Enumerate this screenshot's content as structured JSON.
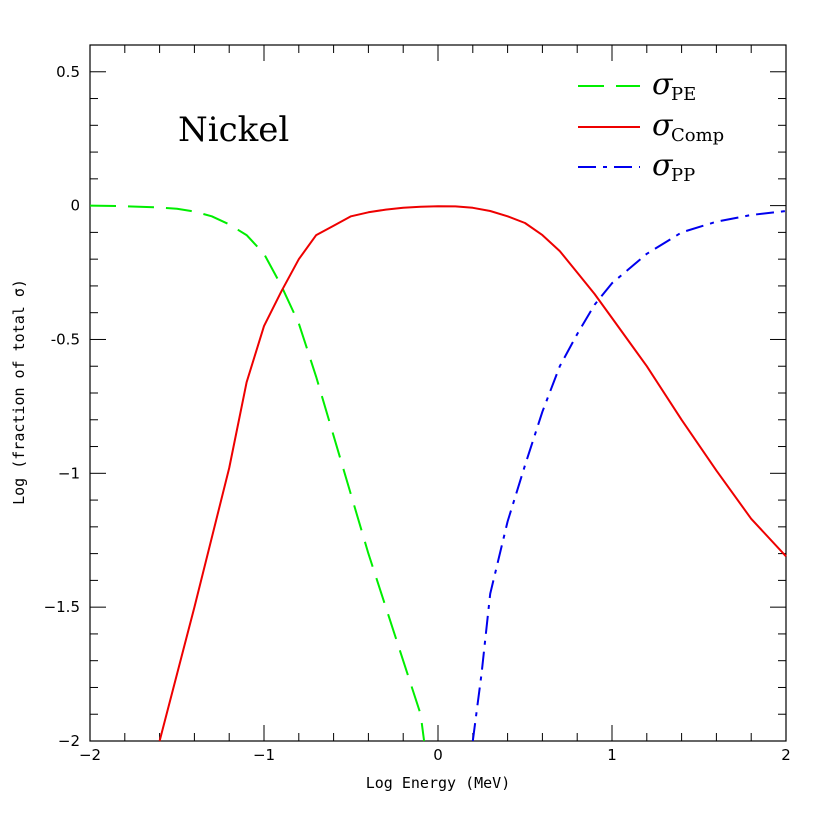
{
  "chart_data": {
    "type": "line",
    "title": "",
    "xlabel": "Log Energy (MeV)",
    "ylabel": "Log (fraction of total σ)",
    "xlim": [
      -2,
      2
    ],
    "ylim": [
      -2,
      0.6
    ],
    "xticks": [
      {
        "value": -2,
        "label": "−2"
      },
      {
        "value": -1,
        "label": "−1"
      },
      {
        "value": 0,
        "label": "0"
      },
      {
        "value": 1,
        "label": "1"
      },
      {
        "value": 2,
        "label": "2"
      }
    ],
    "yticks": [
      {
        "value": 0.5,
        "label": "0.5"
      },
      {
        "value": 0,
        "label": "0"
      },
      {
        "value": -0.5,
        "label": "-0.5"
      },
      {
        "value": -1,
        "label": "−1"
      },
      {
        "value": -1.5,
        "label": "−1.5"
      },
      {
        "value": -2,
        "label": "−2"
      }
    ],
    "annotation": "Nickel",
    "legend_position": "top-right",
    "grid": false,
    "series": [
      {
        "symbol": "σ",
        "subscript": "PE",
        "color": "#00ee00",
        "dash": "dashed",
        "x": [
          -2.0,
          -1.8,
          -1.6,
          -1.5,
          -1.4,
          -1.3,
          -1.2,
          -1.1,
          -1.0,
          -0.9,
          -0.8,
          -0.7,
          -0.6,
          -0.5,
          -0.4,
          -0.3,
          -0.2,
          -0.1,
          -0.08
        ],
        "y": [
          0.0,
          -0.002,
          -0.007,
          -0.012,
          -0.022,
          -0.04,
          -0.07,
          -0.11,
          -0.18,
          -0.3,
          -0.44,
          -0.64,
          -0.86,
          -1.08,
          -1.3,
          -1.5,
          -1.7,
          -1.9,
          -2.0
        ]
      },
      {
        "symbol": "σ",
        "subscript": "Comp",
        "color": "#ee0000",
        "dash": "solid",
        "x": [
          -1.6,
          -1.4,
          -1.2,
          -1.1,
          -1.0,
          -0.9,
          -0.8,
          -0.7,
          -0.6,
          -0.5,
          -0.4,
          -0.3,
          -0.2,
          -0.1,
          0.0,
          0.1,
          0.2,
          0.3,
          0.4,
          0.5,
          0.6,
          0.7,
          0.8,
          0.9,
          1.0,
          1.2,
          1.4,
          1.6,
          1.8,
          2.0
        ],
        "y": [
          -2.0,
          -1.5,
          -0.98,
          -0.66,
          -0.45,
          -0.32,
          -0.2,
          -0.11,
          -0.075,
          -0.04,
          -0.025,
          -0.015,
          -0.008,
          -0.004,
          -0.002,
          -0.003,
          -0.008,
          -0.02,
          -0.04,
          -0.065,
          -0.11,
          -0.17,
          -0.25,
          -0.33,
          -0.42,
          -0.6,
          -0.8,
          -0.99,
          -1.17,
          -1.31
        ]
      },
      {
        "symbol": "σ",
        "subscript": "PP",
        "color": "#0000ee",
        "dash": "dashdot",
        "x": [
          0.2,
          0.25,
          0.3,
          0.4,
          0.5,
          0.6,
          0.7,
          0.8,
          0.9,
          1.0,
          1.2,
          1.4,
          1.6,
          1.8,
          2.0
        ],
        "y": [
          -2.0,
          -1.75,
          -1.45,
          -1.18,
          -0.97,
          -0.77,
          -0.6,
          -0.48,
          -0.37,
          -0.29,
          -0.18,
          -0.1,
          -0.06,
          -0.035,
          -0.02
        ]
      }
    ]
  }
}
